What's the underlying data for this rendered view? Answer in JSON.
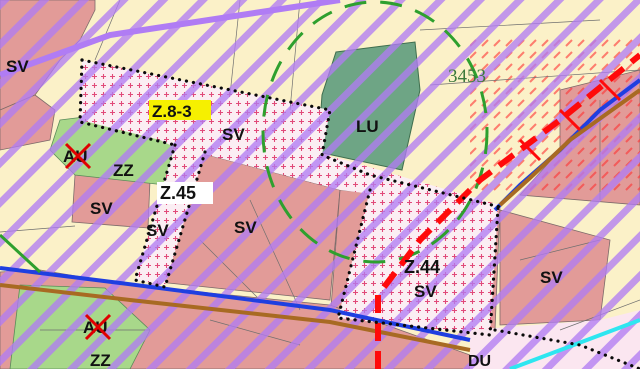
{
  "map": {
    "labels": {
      "sv_nw": "SV",
      "z83": "Z.8-3",
      "sv_z83": "SV",
      "lu": "LU",
      "parcel_3453": "3453",
      "au_1": "AU",
      "zz_1": "ZZ",
      "sv_w": "SV",
      "z45": "Z.45",
      "sv_z45": "SV",
      "sv_center": "SV",
      "z44": "Z.44",
      "sv_z44": "SV",
      "sv_e": "SV",
      "au_2": "AU",
      "zz_2": "ZZ",
      "du": "DU"
    },
    "colors": {
      "residential_sv": "#e29b98",
      "farmland_background": "#fbf1c8",
      "green_zz": "#a8d88a",
      "park_lu": "#6ea585",
      "hatch_overlay": "#b07cf4",
      "railway_red": "#ff0a0a",
      "boundary_blue": "#1f3fe0",
      "road_brown": "#a86a22",
      "planned_pink": "#fbe6f0",
      "canal_cyan": "#2ee6f0",
      "protection_green": "#2ea02e",
      "label_highlight": "#f6f000"
    }
  }
}
